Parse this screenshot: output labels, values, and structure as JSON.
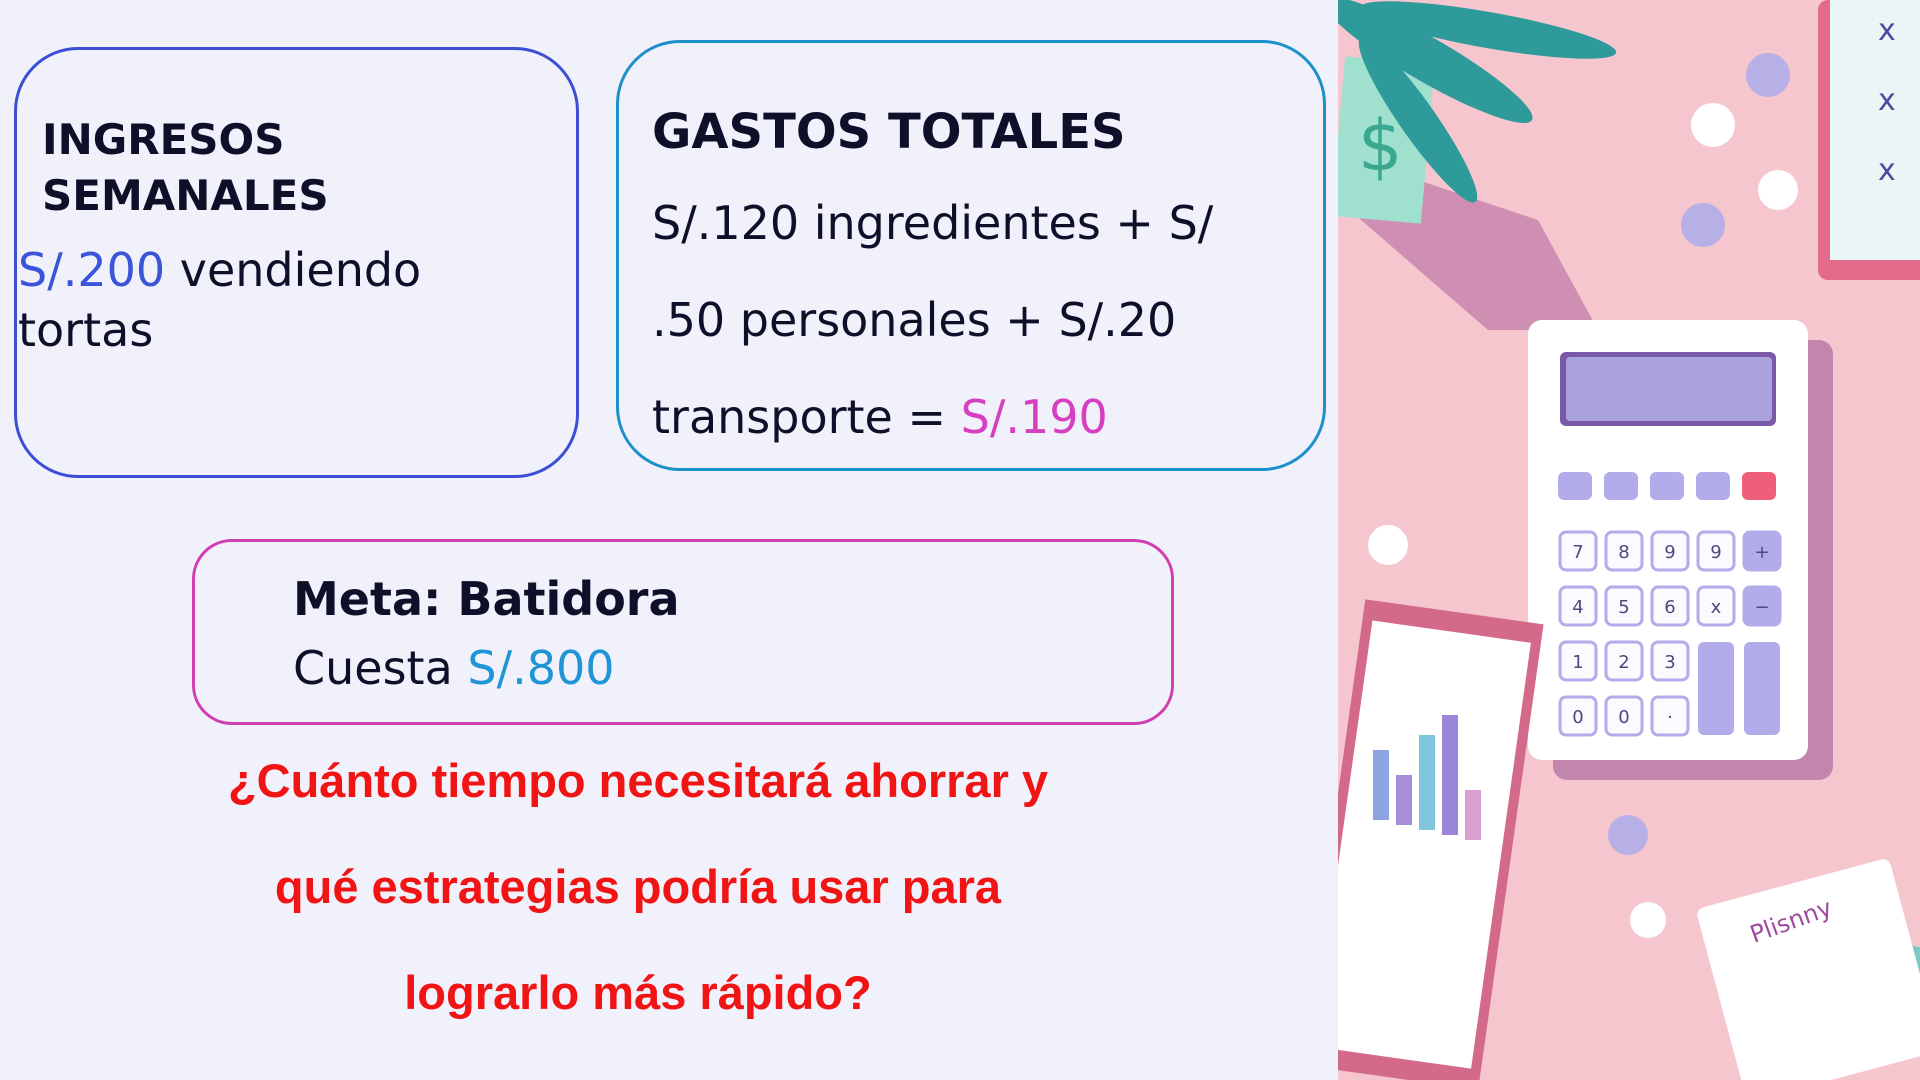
{
  "ingresos": {
    "title_line1": "INGRESOS",
    "title_line2": "SEMANALES",
    "amount": "S/.200",
    "text_line1": " vendiendo",
    "text_line2": "tortas"
  },
  "gastos": {
    "title": "GASTOS TOTALES",
    "line1": "S/.120 ingredientes + S/",
    "line2": ".50 personales + S/.20",
    "line3_prefix": "transporte = ",
    "total": "S/.190"
  },
  "meta": {
    "title": "Meta: Batidora",
    "cost_prefix": "Cuesta ",
    "cost": "S/.800"
  },
  "question": {
    "line1": "¿Cuánto tiempo necesitará ahorrar y",
    "line2": "qué estrategias podría usar para",
    "line3": "lograrlo más rápido?"
  },
  "illustration": {
    "icon": "calculator-finance-illustration",
    "label": "Plisnny",
    "calc_keys": [
      "7",
      "8",
      "9",
      "9",
      "+",
      "4",
      "5",
      "6",
      "x",
      "−",
      "1",
      "2",
      "3",
      "0",
      "0",
      "·"
    ]
  },
  "colors": {
    "income": "#3b55d8",
    "expense_total": "#d63fc0",
    "goal": "#1f95d6",
    "question": "#f01414",
    "art_bg": "#f6c6cf"
  }
}
